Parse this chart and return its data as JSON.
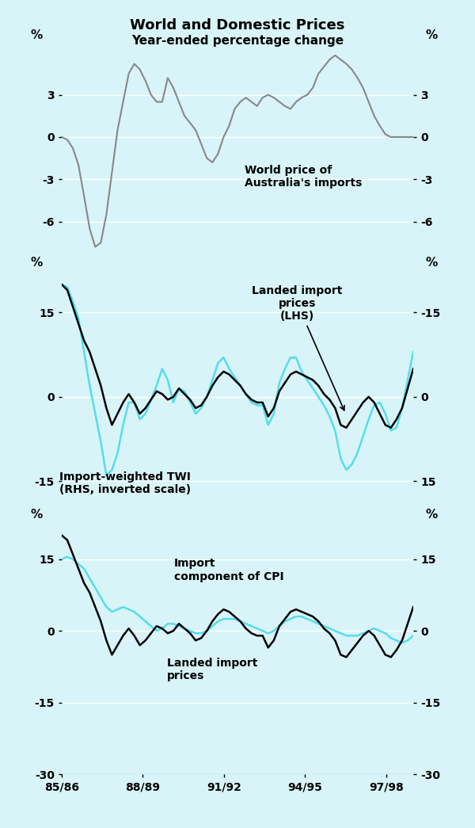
{
  "title": "World and Domestic Prices",
  "subtitle": "Year-ended percentage change",
  "bg_color": "#d8f4f8",
  "line_color_gray": "#888888",
  "line_color_black": "#000000",
  "line_color_cyan": "#55ddee",
  "x_labels": [
    "85/86",
    "88/89",
    "91/92",
    "94/95",
    "97/98"
  ],
  "panel1_ylim": [
    -8.5,
    6.5
  ],
  "panel1_yticks": [
    -6,
    -3,
    0,
    3
  ],
  "panel2_ylim": [
    -20,
    22
  ],
  "panel2_yticks": [
    -15,
    0,
    15
  ],
  "panel3_ylim": [
    -30,
    22
  ],
  "panel3_yticks": [
    -15,
    0,
    15
  ],
  "panel1_data": [
    0.0,
    -0.2,
    -0.8,
    -2.0,
    -4.2,
    -6.5,
    -7.8,
    -7.5,
    -5.5,
    -2.5,
    0.5,
    2.5,
    4.5,
    5.2,
    4.8,
    4.0,
    3.0,
    2.5,
    2.5,
    4.2,
    3.5,
    2.5,
    1.5,
    1.0,
    0.5,
    -0.5,
    -1.5,
    -1.8,
    -1.2,
    0.0,
    0.8,
    2.0,
    2.5,
    2.8,
    2.5,
    2.2,
    2.8,
    3.0,
    2.8,
    2.5,
    2.2,
    2.0,
    2.5,
    2.8,
    3.0,
    3.5,
    4.5,
    5.0,
    5.5,
    5.8,
    5.5,
    5.2,
    4.8,
    4.2,
    3.5,
    2.5,
    1.5,
    0.8,
    0.2,
    0.0,
    0.0,
    0.0,
    0.0,
    0.0
  ],
  "panel2_black": [
    20.0,
    19.0,
    16.0,
    13.0,
    10.0,
    8.0,
    5.0,
    2.0,
    -2.0,
    -5.0,
    -3.0,
    -1.0,
    0.5,
    -1.0,
    -3.0,
    -2.0,
    -0.5,
    1.0,
    0.5,
    -0.5,
    0.0,
    1.5,
    0.5,
    -0.5,
    -2.0,
    -1.5,
    0.0,
    2.0,
    3.5,
    4.5,
    4.0,
    3.0,
    2.0,
    0.5,
    -0.5,
    -1.0,
    -1.0,
    -3.5,
    -2.0,
    1.0,
    2.5,
    4.0,
    4.5,
    4.0,
    3.5,
    3.0,
    2.0,
    0.5,
    -0.5,
    -2.0,
    -5.0,
    -5.5,
    -4.0,
    -2.5,
    -1.0,
    0.0,
    -1.0,
    -3.0,
    -5.0,
    -5.5,
    -4.0,
    -2.0,
    1.5,
    5.0
  ],
  "panel2_cyan": [
    20.0,
    19.5,
    17.0,
    14.0,
    8.0,
    2.0,
    -3.0,
    -8.0,
    -14.0,
    -13.0,
    -10.0,
    -5.0,
    -1.0,
    -1.0,
    -4.0,
    -3.0,
    -0.5,
    2.0,
    5.0,
    3.0,
    -1.0,
    1.5,
    1.0,
    -1.0,
    -3.0,
    -2.0,
    0.0,
    3.0,
    6.0,
    7.0,
    5.0,
    3.5,
    2.0,
    0.5,
    -1.0,
    -1.5,
    -1.5,
    -5.0,
    -3.0,
    2.5,
    5.0,
    7.0,
    7.0,
    4.5,
    3.0,
    1.5,
    0.0,
    -1.5,
    -3.5,
    -6.0,
    -11.0,
    -13.0,
    -12.0,
    -10.0,
    -7.0,
    -4.0,
    -1.5,
    -1.0,
    -3.0,
    -6.0,
    -5.5,
    -2.0,
    3.0,
    8.0
  ],
  "panel3_black": [
    20.0,
    19.0,
    16.0,
    13.0,
    10.0,
    8.0,
    5.0,
    2.0,
    -2.0,
    -5.0,
    -3.0,
    -1.0,
    0.5,
    -1.0,
    -3.0,
    -2.0,
    -0.5,
    1.0,
    0.5,
    -0.5,
    0.0,
    1.5,
    0.5,
    -0.5,
    -2.0,
    -1.5,
    0.0,
    2.0,
    3.5,
    4.5,
    4.0,
    3.0,
    2.0,
    0.5,
    -0.5,
    -1.0,
    -1.0,
    -3.5,
    -2.0,
    1.0,
    2.5,
    4.0,
    4.5,
    4.0,
    3.5,
    3.0,
    2.0,
    0.5,
    -0.5,
    -2.0,
    -5.0,
    -5.5,
    -4.0,
    -2.5,
    -1.0,
    0.0,
    -1.0,
    -3.0,
    -5.0,
    -5.5,
    -4.0,
    -2.0,
    1.5,
    5.0
  ],
  "panel3_cyan": [
    15.0,
    15.5,
    15.0,
    14.0,
    13.0,
    11.0,
    9.0,
    7.0,
    5.0,
    4.0,
    4.5,
    5.0,
    4.5,
    4.0,
    3.0,
    2.0,
    1.0,
    0.0,
    0.5,
    1.5,
    1.5,
    1.0,
    0.5,
    0.0,
    -0.5,
    -0.5,
    0.0,
    1.0,
    2.0,
    2.5,
    2.5,
    2.5,
    2.0,
    1.5,
    1.0,
    0.5,
    0.0,
    -0.5,
    0.0,
    1.0,
    2.0,
    2.5,
    3.0,
    3.0,
    2.5,
    2.0,
    1.5,
    1.0,
    0.5,
    0.0,
    -0.5,
    -1.0,
    -1.0,
    -1.0,
    -0.5,
    0.0,
    0.5,
    0.0,
    -0.5,
    -1.5,
    -2.0,
    -2.5,
    -2.0,
    -1.0
  ]
}
